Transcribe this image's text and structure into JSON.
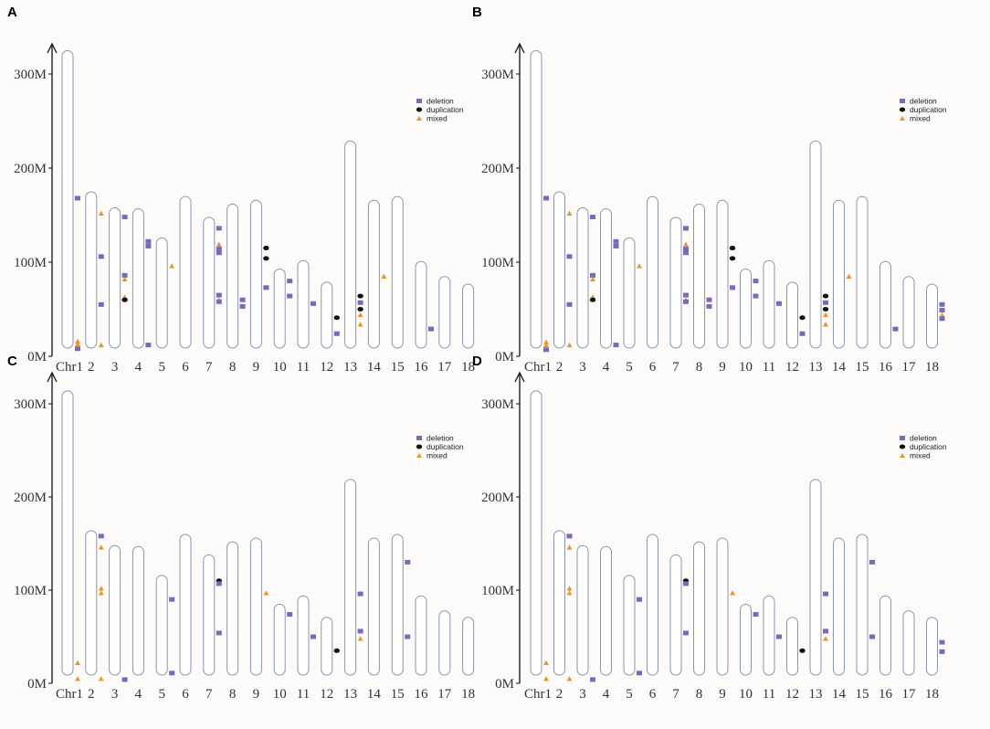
{
  "chart_data": {
    "type": "scatter",
    "subtype": "chromosome-ideogram",
    "x_prefix": "Chr",
    "chromosomes": [
      "1",
      "2",
      "3",
      "4",
      "5",
      "6",
      "7",
      "8",
      "9",
      "10",
      "11",
      "12",
      "13",
      "14",
      "15",
      "16",
      "17",
      "18"
    ],
    "y_ticks": [
      {
        "value": 0,
        "label": "0M"
      },
      {
        "value": 100,
        "label": "100M"
      },
      {
        "value": 200,
        "label": "200M"
      },
      {
        "value": 300,
        "label": "300M"
      }
    ],
    "ylim": [
      0,
      330
    ],
    "ylabel_unit": "M",
    "legend": [
      {
        "key": "deletion",
        "label": "deletion",
        "color": "#7b68b8",
        "shape": "square"
      },
      {
        "key": "duplication",
        "label": "duplication",
        "color": "#111111",
        "shape": "ellipse"
      },
      {
        "key": "mixed",
        "label": "mixed",
        "color": "#e8952c",
        "shape": "triangle"
      }
    ],
    "panels": [
      {
        "letter": "A",
        "lengths": [
          316,
          166,
          149,
          148,
          117,
          161,
          139,
          153,
          157,
          84,
          93,
          70,
          220,
          157,
          161,
          92,
          76,
          68
        ],
        "markers": [
          {
            "chr": 1,
            "type": "mixed",
            "y": 16
          },
          {
            "chr": 1,
            "type": "mixed",
            "y": 13
          },
          {
            "chr": 1,
            "type": "deletion",
            "y": 8
          },
          {
            "chr": 1,
            "type": "deletion",
            "y": 168
          },
          {
            "chr": 2,
            "type": "mixed",
            "y": 152
          },
          {
            "chr": 2,
            "type": "deletion",
            "y": 106
          },
          {
            "chr": 2,
            "type": "deletion",
            "y": 55
          },
          {
            "chr": 2,
            "type": "mixed",
            "y": 12
          },
          {
            "chr": 3,
            "type": "deletion",
            "y": 148
          },
          {
            "chr": 3,
            "type": "deletion",
            "y": 86
          },
          {
            "chr": 3,
            "type": "mixed",
            "y": 82
          },
          {
            "chr": 3,
            "type": "mixed",
            "y": 63
          },
          {
            "chr": 3,
            "type": "duplication",
            "y": 60
          },
          {
            "chr": 4,
            "type": "deletion",
            "y": 122
          },
          {
            "chr": 4,
            "type": "deletion",
            "y": 117
          },
          {
            "chr": 4,
            "type": "deletion",
            "y": 12
          },
          {
            "chr": 5,
            "type": "mixed",
            "y": 96
          },
          {
            "chr": 7,
            "type": "deletion",
            "y": 136
          },
          {
            "chr": 7,
            "type": "mixed",
            "y": 119
          },
          {
            "chr": 7,
            "type": "deletion",
            "y": 114
          },
          {
            "chr": 7,
            "type": "deletion",
            "y": 110
          },
          {
            "chr": 7,
            "type": "deletion",
            "y": 65
          },
          {
            "chr": 7,
            "type": "mixed",
            "y": 60
          },
          {
            "chr": 7,
            "type": "deletion",
            "y": 58
          },
          {
            "chr": 8,
            "type": "deletion",
            "y": 60
          },
          {
            "chr": 8,
            "type": "deletion",
            "y": 53
          },
          {
            "chr": 9,
            "type": "duplication",
            "y": 115
          },
          {
            "chr": 9,
            "type": "duplication",
            "y": 104
          },
          {
            "chr": 9,
            "type": "deletion",
            "y": 73
          },
          {
            "chr": 10,
            "type": "deletion",
            "y": 80
          },
          {
            "chr": 10,
            "type": "deletion",
            "y": 64
          },
          {
            "chr": 11,
            "type": "deletion",
            "y": 56
          },
          {
            "chr": 12,
            "type": "duplication",
            "y": 41
          },
          {
            "chr": 12,
            "type": "deletion",
            "y": 24
          },
          {
            "chr": 13,
            "type": "duplication",
            "y": 64
          },
          {
            "chr": 13,
            "type": "deletion",
            "y": 57
          },
          {
            "chr": 13,
            "type": "duplication",
            "y": 50
          },
          {
            "chr": 13,
            "type": "mixed",
            "y": 44
          },
          {
            "chr": 13,
            "type": "mixed",
            "y": 34
          },
          {
            "chr": 14,
            "type": "mixed",
            "y": 85
          },
          {
            "chr": 16,
            "type": "deletion",
            "y": 29
          }
        ]
      },
      {
        "letter": "B",
        "lengths": [
          316,
          166,
          149,
          148,
          117,
          161,
          139,
          153,
          157,
          84,
          93,
          70,
          220,
          157,
          161,
          92,
          76,
          68
        ],
        "markers": [
          {
            "chr": 1,
            "type": "mixed",
            "y": 15
          },
          {
            "chr": 1,
            "type": "mixed",
            "y": 12
          },
          {
            "chr": 1,
            "type": "deletion",
            "y": 7
          },
          {
            "chr": 1,
            "type": "deletion",
            "y": 168
          },
          {
            "chr": 2,
            "type": "mixed",
            "y": 152
          },
          {
            "chr": 2,
            "type": "deletion",
            "y": 106
          },
          {
            "chr": 2,
            "type": "deletion",
            "y": 55
          },
          {
            "chr": 2,
            "type": "mixed",
            "y": 12
          },
          {
            "chr": 3,
            "type": "deletion",
            "y": 148
          },
          {
            "chr": 3,
            "type": "deletion",
            "y": 86
          },
          {
            "chr": 3,
            "type": "mixed",
            "y": 82
          },
          {
            "chr": 3,
            "type": "mixed",
            "y": 63
          },
          {
            "chr": 3,
            "type": "duplication",
            "y": 60
          },
          {
            "chr": 4,
            "type": "deletion",
            "y": 122
          },
          {
            "chr": 4,
            "type": "deletion",
            "y": 117
          },
          {
            "chr": 4,
            "type": "deletion",
            "y": 12
          },
          {
            "chr": 5,
            "type": "mixed",
            "y": 96
          },
          {
            "chr": 7,
            "type": "deletion",
            "y": 136
          },
          {
            "chr": 7,
            "type": "mixed",
            "y": 119
          },
          {
            "chr": 7,
            "type": "deletion",
            "y": 114
          },
          {
            "chr": 7,
            "type": "deletion",
            "y": 110
          },
          {
            "chr": 7,
            "type": "deletion",
            "y": 65
          },
          {
            "chr": 7,
            "type": "mixed",
            "y": 60
          },
          {
            "chr": 7,
            "type": "deletion",
            "y": 58
          },
          {
            "chr": 8,
            "type": "deletion",
            "y": 60
          },
          {
            "chr": 8,
            "type": "deletion",
            "y": 53
          },
          {
            "chr": 9,
            "type": "duplication",
            "y": 115
          },
          {
            "chr": 9,
            "type": "duplication",
            "y": 104
          },
          {
            "chr": 9,
            "type": "deletion",
            "y": 73
          },
          {
            "chr": 10,
            "type": "deletion",
            "y": 80
          },
          {
            "chr": 10,
            "type": "deletion",
            "y": 64
          },
          {
            "chr": 11,
            "type": "deletion",
            "y": 56
          },
          {
            "chr": 12,
            "type": "duplication",
            "y": 41
          },
          {
            "chr": 12,
            "type": "deletion",
            "y": 24
          },
          {
            "chr": 13,
            "type": "duplication",
            "y": 64
          },
          {
            "chr": 13,
            "type": "deletion",
            "y": 57
          },
          {
            "chr": 13,
            "type": "duplication",
            "y": 50
          },
          {
            "chr": 13,
            "type": "mixed",
            "y": 44
          },
          {
            "chr": 13,
            "type": "mixed",
            "y": 34
          },
          {
            "chr": 14,
            "type": "mixed",
            "y": 85
          },
          {
            "chr": 16,
            "type": "deletion",
            "y": 29
          },
          {
            "chr": 18,
            "type": "deletion",
            "y": 55
          },
          {
            "chr": 18,
            "type": "deletion",
            "y": 49
          },
          {
            "chr": 18,
            "type": "mixed",
            "y": 44
          },
          {
            "chr": 18,
            "type": "deletion",
            "y": 40
          }
        ]
      },
      {
        "letter": "C",
        "lengths": [
          305,
          155,
          139,
          138,
          107,
          151,
          129,
          143,
          147,
          76,
          85,
          62,
          210,
          147,
          151,
          85,
          69,
          62
        ],
        "markers": [
          {
            "chr": 1,
            "type": "mixed",
            "y": 22
          },
          {
            "chr": 1,
            "type": "mixed",
            "y": 5
          },
          {
            "chr": 2,
            "type": "deletion",
            "y": 158
          },
          {
            "chr": 2,
            "type": "mixed",
            "y": 146
          },
          {
            "chr": 2,
            "type": "mixed",
            "y": 102
          },
          {
            "chr": 2,
            "type": "mixed",
            "y": 97
          },
          {
            "chr": 2,
            "type": "mixed",
            "y": 5
          },
          {
            "chr": 3,
            "type": "deletion",
            "y": 4
          },
          {
            "chr": 5,
            "type": "deletion",
            "y": 90
          },
          {
            "chr": 5,
            "type": "deletion",
            "y": 11
          },
          {
            "chr": 7,
            "type": "duplication",
            "y": 110
          },
          {
            "chr": 7,
            "type": "deletion",
            "y": 107
          },
          {
            "chr": 7,
            "type": "deletion",
            "y": 54
          },
          {
            "chr": 9,
            "type": "mixed",
            "y": 97
          },
          {
            "chr": 10,
            "type": "deletion",
            "y": 74
          },
          {
            "chr": 11,
            "type": "deletion",
            "y": 50
          },
          {
            "chr": 12,
            "type": "duplication",
            "y": 35
          },
          {
            "chr": 13,
            "type": "deletion",
            "y": 96
          },
          {
            "chr": 13,
            "type": "deletion",
            "y": 56
          },
          {
            "chr": 13,
            "type": "mixed",
            "y": 48
          },
          {
            "chr": 15,
            "type": "deletion",
            "y": 130
          },
          {
            "chr": 15,
            "type": "deletion",
            "y": 50
          }
        ]
      },
      {
        "letter": "D",
        "lengths": [
          305,
          155,
          139,
          138,
          107,
          151,
          129,
          143,
          147,
          76,
          85,
          62,
          210,
          147,
          151,
          85,
          69,
          62
        ],
        "markers": [
          {
            "chr": 1,
            "type": "mixed",
            "y": 22
          },
          {
            "chr": 1,
            "type": "mixed",
            "y": 5
          },
          {
            "chr": 2,
            "type": "deletion",
            "y": 158
          },
          {
            "chr": 2,
            "type": "mixed",
            "y": 146
          },
          {
            "chr": 2,
            "type": "mixed",
            "y": 102
          },
          {
            "chr": 2,
            "type": "mixed",
            "y": 97
          },
          {
            "chr": 2,
            "type": "mixed",
            "y": 5
          },
          {
            "chr": 3,
            "type": "deletion",
            "y": 4
          },
          {
            "chr": 5,
            "type": "deletion",
            "y": 90
          },
          {
            "chr": 5,
            "type": "deletion",
            "y": 11
          },
          {
            "chr": 7,
            "type": "duplication",
            "y": 110
          },
          {
            "chr": 7,
            "type": "deletion",
            "y": 107
          },
          {
            "chr": 7,
            "type": "deletion",
            "y": 54
          },
          {
            "chr": 9,
            "type": "mixed",
            "y": 97
          },
          {
            "chr": 10,
            "type": "deletion",
            "y": 74
          },
          {
            "chr": 11,
            "type": "deletion",
            "y": 50
          },
          {
            "chr": 12,
            "type": "duplication",
            "y": 35
          },
          {
            "chr": 13,
            "type": "deletion",
            "y": 96
          },
          {
            "chr": 13,
            "type": "deletion",
            "y": 56
          },
          {
            "chr": 13,
            "type": "mixed",
            "y": 48
          },
          {
            "chr": 15,
            "type": "deletion",
            "y": 130
          },
          {
            "chr": 15,
            "type": "deletion",
            "y": 50
          },
          {
            "chr": 18,
            "type": "deletion",
            "y": 44
          },
          {
            "chr": 18,
            "type": "deletion",
            "y": 34
          }
        ]
      }
    ]
  }
}
